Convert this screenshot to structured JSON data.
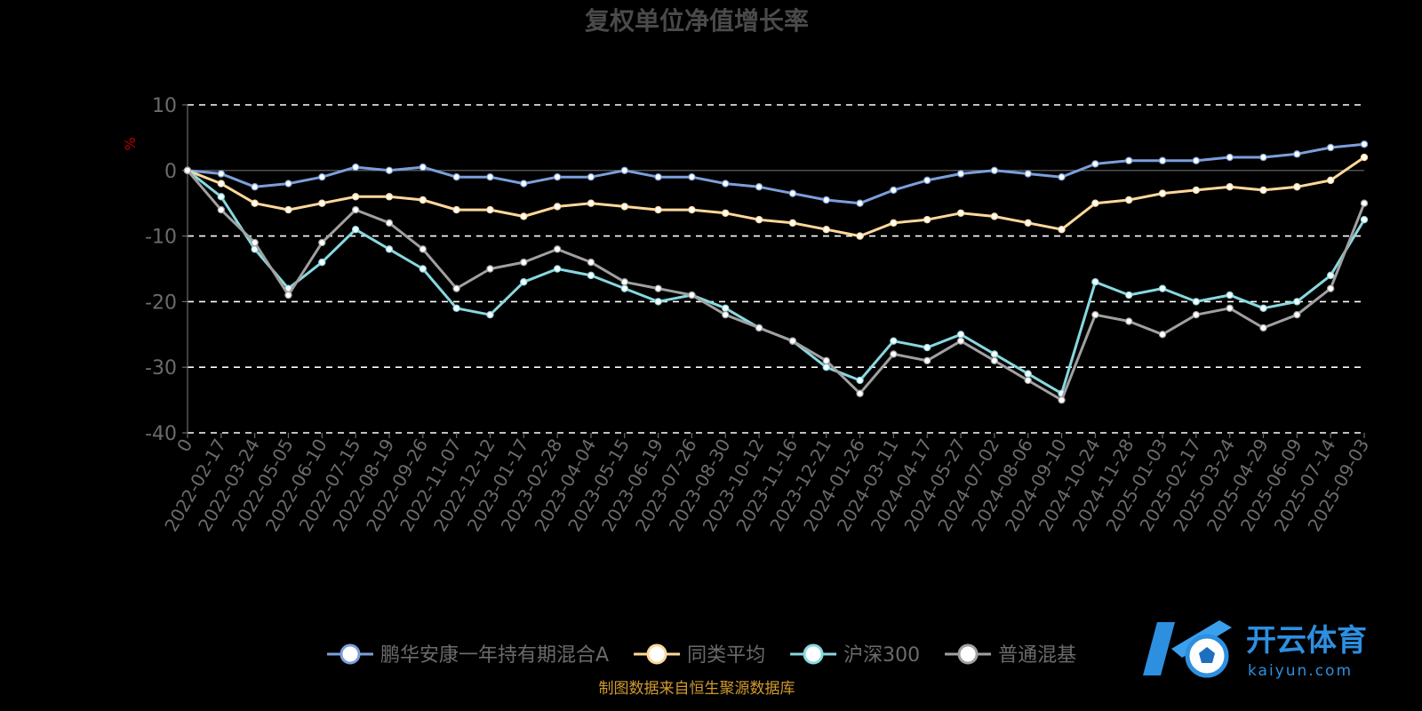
{
  "chart_data": {
    "type": "line",
    "title": "复权单位净值增长率",
    "ylabel": "%",
    "ylim": [
      -40,
      10
    ],
    "yticks": [
      10,
      0,
      -10,
      -20,
      -30,
      -40
    ],
    "grid": true,
    "legend_position": "bottom",
    "x_tick_labels": [
      "0",
      "2022-02-17",
      "2022-03-24",
      "2022-05-05",
      "2022-06-10",
      "2022-07-15",
      "2022-08-19",
      "2022-09-26",
      "2022-11-07",
      "2022-12-12",
      "2023-01-17",
      "2023-02-28",
      "2023-04-04",
      "2023-05-15",
      "2023-06-19",
      "2023-07-26",
      "2023-08-30",
      "2023-10-12",
      "2023-11-16",
      "2023-12-21",
      "2024-01-26",
      "2024-03-11",
      "2024-04-17",
      "2024-05-27",
      "2024-07-02",
      "2024-08-06",
      "2024-09-10",
      "2024-10-24",
      "2024-11-28",
      "2025-01-03",
      "2025-02-17",
      "2025-03-24",
      "2025-04-29",
      "2025-06-09",
      "2025-07-14",
      "2025-09-03"
    ],
    "series": [
      {
        "name": "鹏华安康一年持有期混合A",
        "color": "#7b9fdb",
        "values": [
          0,
          -0.5,
          -2.5,
          -2,
          -1,
          0.5,
          0,
          0.5,
          -1,
          -1,
          -2,
          -1,
          -1,
          0,
          -1,
          -1,
          -2,
          -2.5,
          -3.5,
          -4.5,
          -5,
          -3,
          -1.5,
          -0.5,
          0,
          -0.5,
          -1,
          1,
          1.5,
          1.5,
          1.5,
          2,
          2,
          2.5,
          3.5,
          4
        ]
      },
      {
        "name": "同类平均",
        "color": "#ffd89a",
        "values": [
          0,
          -2,
          -5,
          -6,
          -5,
          -4,
          -4,
          -4.5,
          -6,
          -6,
          -7,
          -5.5,
          -5,
          -5.5,
          -6,
          -6,
          -6.5,
          -7.5,
          -8,
          -9,
          -10,
          -8,
          -7.5,
          -6.5,
          -7,
          -8,
          -9,
          -5,
          -4.5,
          -3.5,
          -3,
          -2.5,
          -3,
          -2.5,
          -1.5,
          2
        ]
      },
      {
        "name": "沪深300",
        "color": "#88d8e0",
        "values": [
          0,
          -4,
          -12,
          -18,
          -14,
          -9,
          -12,
          -15,
          -21,
          -22,
          -17,
          -15,
          -16,
          -18,
          -20,
          -19,
          -21,
          -24,
          -26,
          -30,
          -32,
          -26,
          -27,
          -25,
          -28,
          -31,
          -34,
          -17,
          -19,
          -18,
          -20,
          -19,
          -21,
          -20,
          -16,
          -7.5
        ]
      },
      {
        "name": "普通混基",
        "color": "#a0a0a0",
        "values": [
          0,
          -6,
          -11,
          -19,
          -11,
          -6,
          -8,
          -12,
          -18,
          -15,
          -14,
          -12,
          -14,
          -17,
          -18,
          -19,
          -22,
          -24,
          -26,
          -29,
          -34,
          -28,
          -29,
          -26,
          -29,
          -32,
          -35,
          -22,
          -23,
          -25,
          -22,
          -21,
          -24,
          -22,
          -18,
          -5
        ]
      }
    ]
  },
  "footer": {
    "credit": "制图数据来自恒生聚源数据库"
  },
  "logo": {
    "name": "开云体育",
    "url": "kaiyun.com"
  }
}
